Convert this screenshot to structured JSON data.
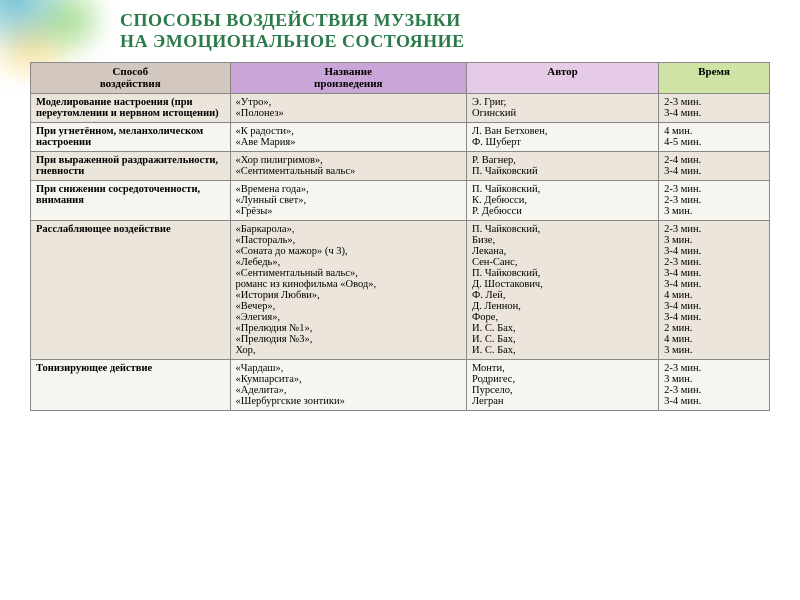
{
  "title_line1": "СПОСОБЫ ВОЗДЕЙСТВИЯ МУЗЫКИ",
  "title_line2": "НА ЭМОЦИОНАЛЬНОЕ СОСТОЯНИЕ",
  "columns": {
    "method": "Способ\nвоздействия",
    "work": "Название\nпроизведения",
    "author": "Автор",
    "time": "Время"
  },
  "header_colors": {
    "method": "#d3c8c0",
    "work": "#c9a5d8",
    "author": "#e6cbe6",
    "time": "#cfe3a5"
  },
  "row_bg_a": "#ebe5dc",
  "row_bg_b": "#f7f5f0",
  "rows": [
    {
      "method": "Моделирование настроения (при переутомлении и нервном истощении)",
      "works": "«Утро»,\n«Полонез»",
      "authors": "Э. Григ,\nОгинский",
      "times": "2-3 мин.\n3-4 мин."
    },
    {
      "method": "При угнетённом, меланхолическом настроении",
      "works": "«К радости»,\n«Аве Мария»",
      "authors": "Л. Ван Бетховен,\nФ. Шуберт",
      "times": "4 мин.\n4-5 мин."
    },
    {
      "method": "При выраженной раздражительности, гневности",
      "works": "«Хор пилигримов»,\n«Сентиментальный вальс»",
      "authors": "Р. Вагнер,\nП. Чайковский",
      "times": "2-4 мин.\n3-4 мин."
    },
    {
      "method": "При снижении сосредоточенности, внимания",
      "works": "«Времена года»,\n«Лунный свет»,\n«Грёзы»",
      "authors": "П. Чайковский,\nК. Дебюсси,\nР. Дебюсси",
      "times": "2-3 мин.\n2-3 мин.\n3 мин."
    },
    {
      "method": "Расслабляющее воздействие",
      "works": "«Баркарола»,\n«Пастораль»,\n«Соната до мажор» (ч 3),\n«Лебедь»,\n«Сентиментальный вальс»,\nроманс из кинофильма «Овод»,\n«История Любви»,\n«Вечер»,\n«Элегия»,\n«Прелюдия №1»,\n«Прелюдия №3»,\nХор,",
      "authors": "П. Чайковский,\nБизе,\nЛекана,\nСен-Санс,\nП. Чайковский,\nД. Шостакович,\nФ. Лей,\nД. Леннон,\nФоре,\nИ. С. Бах,\nИ. С. Бах,\nИ. С. Бах,",
      "times": "2-3 мин.\n3 мин.\n3-4 мин.\n2-3 мин.\n3-4 мин.\n3-4 мин.\n4 мин.\n3-4 мин.\n3-4 мин.\n2 мин.\n4 мин.\n3 мин."
    },
    {
      "method": "Тонизирующее действие",
      "works": "«Чардаш»,\n«Кумпарсита»,\n«Аделита»,\n«Шербургские зонтики»",
      "authors": "Монти,\nРодригес,\nПурсело,\nЛегран",
      "times": "2-3 мин.\n3 мин.\n2-3 мин.\n3-4 мин."
    }
  ]
}
